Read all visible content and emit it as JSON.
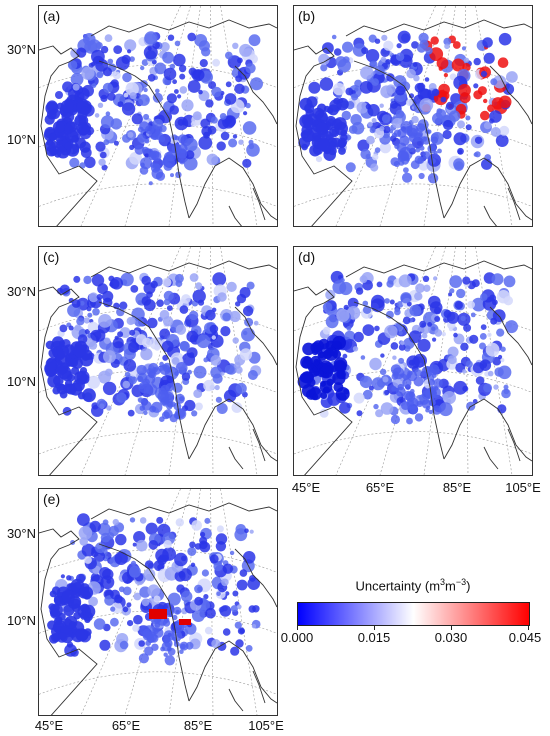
{
  "panels": [
    {
      "id": "a",
      "label": "(a)"
    },
    {
      "id": "b",
      "label": "(b)"
    },
    {
      "id": "c",
      "label": "(c)"
    },
    {
      "id": "d",
      "label": "(d)"
    },
    {
      "id": "e",
      "label": "(e)"
    }
  ],
  "lat_labels": [
    "30°N",
    "10°N"
  ],
  "lon_labels": [
    "45°E",
    "65°E",
    "85°E",
    "105°E"
  ],
  "colorbar": {
    "title_main": "Uncertainty (m",
    "title_sup1": "3",
    "title_mid": "m",
    "title_sup2": "−3",
    "title_end": ")",
    "ticks": [
      "0.000",
      "0.015",
      "0.030",
      "0.045"
    ],
    "range": [
      0.0,
      0.045
    ],
    "colors": {
      "low": "#0000ff",
      "mid": "#ffffff",
      "high": "#ff0000"
    }
  },
  "colors": {
    "coast": "#333333",
    "grid": "#9a9a9a"
  }
}
